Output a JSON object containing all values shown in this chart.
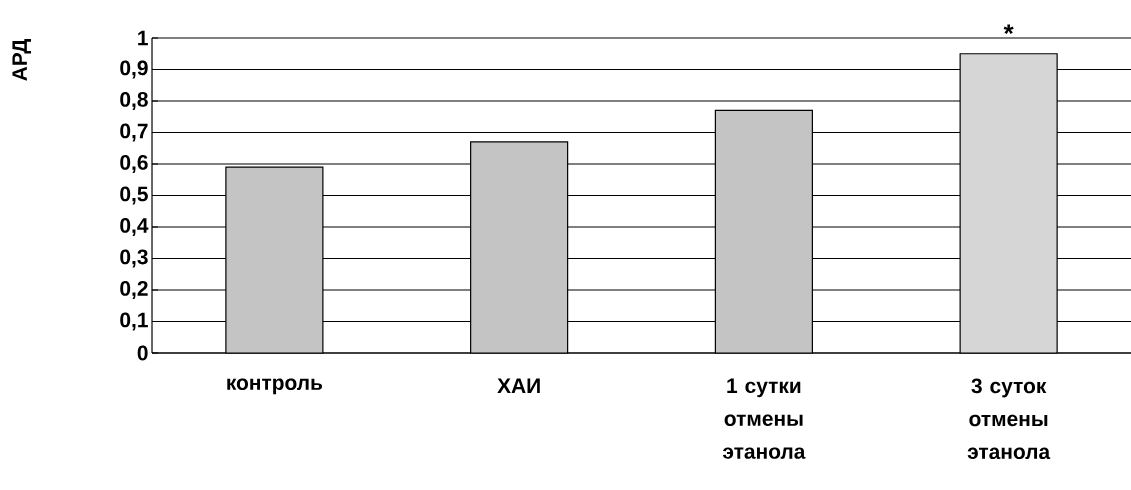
{
  "chart_data": {
    "type": "bar",
    "ylabel": "АРД",
    "categories": [
      "контроль",
      "ХАИ",
      "1 сутки отмены этанола",
      "3 суток отмены этанола"
    ],
    "values": [
      0.59,
      0.67,
      0.77,
      0.95
    ],
    "colors": [
      "#c4c4c4",
      "#c4c4c4",
      "#c4c4c4",
      "#d6d6d6"
    ],
    "ylim": [
      0,
      1
    ],
    "yticks": [
      {
        "value": 0,
        "label": "0"
      },
      {
        "value": 0.1,
        "label": "0,1"
      },
      {
        "value": 0.2,
        "label": "0,2"
      },
      {
        "value": 0.3,
        "label": "0,3"
      },
      {
        "value": 0.4,
        "label": "0,4"
      },
      {
        "value": 0.5,
        "label": "0,5"
      },
      {
        "value": 0.6,
        "label": "0,6"
      },
      {
        "value": 0.7,
        "label": "0,7"
      },
      {
        "value": 0.8,
        "label": "0,8"
      },
      {
        "value": 0.9,
        "label": "0,9"
      },
      {
        "value": 1,
        "label": "1"
      }
    ],
    "grid": "y",
    "annotations": [
      {
        "text": "*",
        "x": "3 суток отмены этанола",
        "y": 0.95
      }
    ]
  }
}
